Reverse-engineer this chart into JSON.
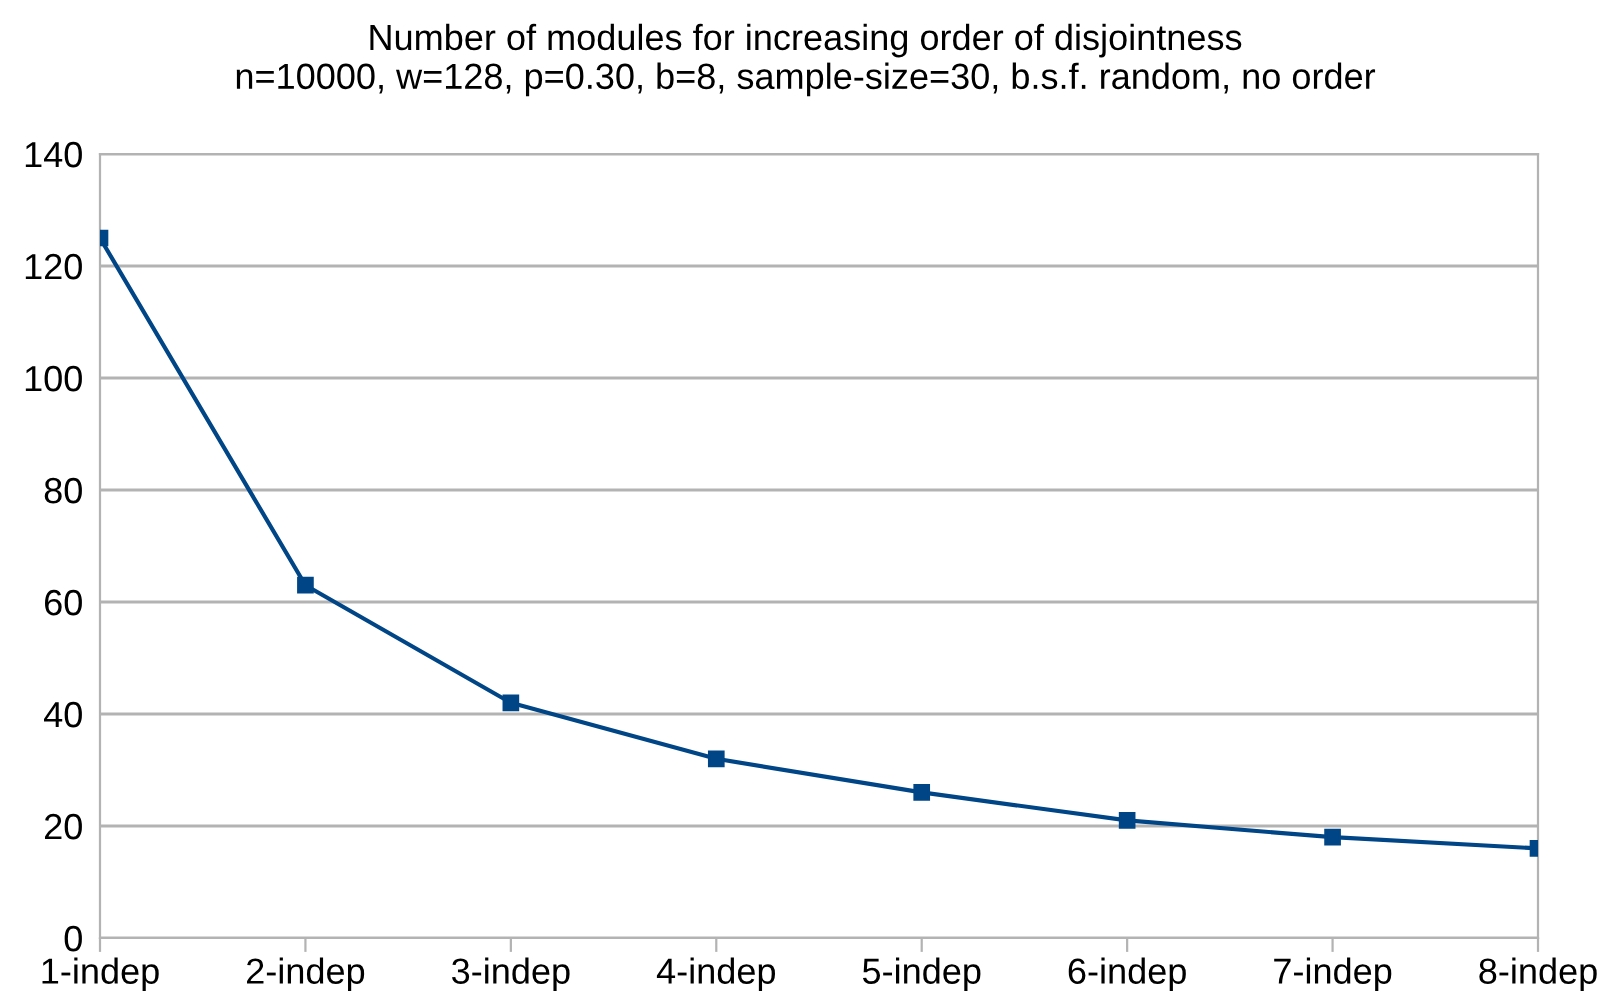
{
  "chart_data": {
    "type": "line",
    "title": "Number of modules for increasing order of disjointness\nn=10000, w=128, p=0.30, b=8, sample-size=30, b.s.f. random, no order",
    "categories": [
      "1-indep",
      "2-indep",
      "3-indep",
      "4-indep",
      "5-indep",
      "6-indep",
      "7-indep",
      "8-indep"
    ],
    "series": [
      {
        "color": "#004586",
        "values": [
          125,
          63,
          42,
          32,
          26,
          21,
          18,
          16
        ]
      }
    ],
    "ylim": [
      0,
      140
    ],
    "yticks": [
      0,
      20,
      40,
      60,
      80,
      100,
      120,
      140
    ],
    "grid": "y",
    "marker": "square",
    "line_style": "solid",
    "legend": false
  }
}
